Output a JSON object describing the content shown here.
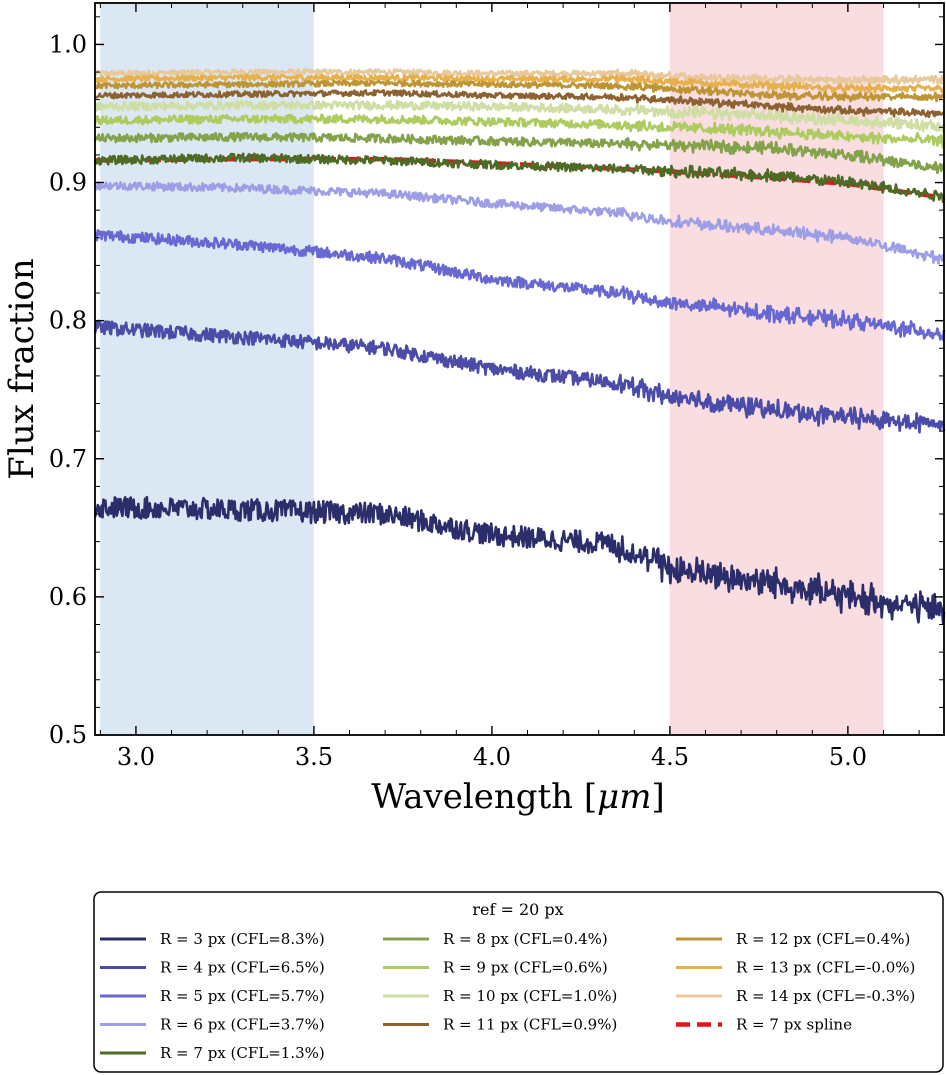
{
  "chart_data": {
    "type": "line",
    "title": "",
    "xlabel": "Wavelength [",
    "xlabel_unit": "μm",
    "xlabel_close": "]",
    "ylabel": "Flux fraction",
    "xlim": [
      2.885,
      5.27
    ],
    "ylim": [
      0.5,
      1.03
    ],
    "xticks": [
      3.0,
      3.5,
      4.0,
      4.5,
      5.0
    ],
    "xtick_labels": [
      "3.0",
      "3.5",
      "4.0",
      "4.5",
      "5.0"
    ],
    "yticks": [
      0.5,
      0.6,
      0.7,
      0.8,
      0.9,
      1.0
    ],
    "ytick_labels": [
      "0.5",
      "0.6",
      "0.7",
      "0.8",
      "0.9",
      "1.0"
    ],
    "shaded_regions": [
      {
        "x": [
          2.9,
          3.5
        ],
        "color": "#dbe8f3"
      },
      {
        "x": [
          4.5,
          5.1
        ],
        "color": "#f9dde0"
      }
    ],
    "x_grid": [
      2.9,
      3.3,
      3.7,
      4.0,
      4.35,
      4.5,
      4.8,
      5.0,
      5.27
    ],
    "series": [
      {
        "name": "R = 3 px (CFL=8.3%)",
        "color": "#2c2e6b",
        "style": "solid",
        "noise": 0.008,
        "values": [
          0.665,
          0.663,
          0.66,
          0.645,
          0.638,
          0.62,
          0.61,
          0.6,
          0.59
        ]
      },
      {
        "name": "R = 4 px (CFL=6.5%)",
        "color": "#4a4ca8",
        "style": "solid",
        "noise": 0.005,
        "values": [
          0.795,
          0.788,
          0.78,
          0.765,
          0.755,
          0.745,
          0.735,
          0.73,
          0.725
        ]
      },
      {
        "name": "R = 5 px (CFL=5.7%)",
        "color": "#6868d2",
        "style": "solid",
        "noise": 0.004,
        "values": [
          0.862,
          0.855,
          0.845,
          0.83,
          0.82,
          0.813,
          0.805,
          0.8,
          0.79
        ]
      },
      {
        "name": "R = 6 px (CFL=3.7%)",
        "color": "#9e9ee6",
        "style": "solid",
        "noise": 0.003,
        "values": [
          0.898,
          0.896,
          0.892,
          0.885,
          0.878,
          0.872,
          0.865,
          0.86,
          0.845
        ]
      },
      {
        "name": "R = 7 px (CFL=1.3%)",
        "color": "#4d6b24",
        "style": "solid",
        "noise": 0.003,
        "values": [
          0.916,
          0.918,
          0.916,
          0.913,
          0.91,
          0.908,
          0.905,
          0.9,
          0.89
        ]
      },
      {
        "name": "R = 8 px (CFL=0.4%)",
        "color": "#84a24a",
        "style": "solid",
        "noise": 0.003,
        "values": [
          0.932,
          0.933,
          0.932,
          0.93,
          0.928,
          0.927,
          0.925,
          0.92,
          0.91
        ]
      },
      {
        "name": "R = 9 px (CFL=0.6%)",
        "color": "#aecb60",
        "style": "solid",
        "noise": 0.003,
        "values": [
          0.945,
          0.946,
          0.946,
          0.944,
          0.942,
          0.94,
          0.937,
          0.933,
          0.93
        ]
      },
      {
        "name": "R = 10 px (CFL=1.0%)",
        "color": "#cfdea2",
        "style": "solid",
        "noise": 0.003,
        "values": [
          0.955,
          0.956,
          0.956,
          0.955,
          0.953,
          0.951,
          0.948,
          0.945,
          0.94
        ]
      },
      {
        "name": "R = 11 px (CFL=0.9%)",
        "color": "#8c6230",
        "style": "solid",
        "noise": 0.002,
        "values": [
          0.963,
          0.964,
          0.965,
          0.963,
          0.962,
          0.96,
          0.955,
          0.952,
          0.95
        ]
      },
      {
        "name": "R = 12 px (CFL=0.4%)",
        "color": "#bd9535",
        "style": "solid",
        "noise": 0.002,
        "values": [
          0.97,
          0.971,
          0.972,
          0.971,
          0.97,
          0.968,
          0.963,
          0.962,
          0.962
        ]
      },
      {
        "name": "R = 13 px (CFL=-0.0%)",
        "color": "#e6b04c",
        "style": "solid",
        "noise": 0.002,
        "values": [
          0.975,
          0.976,
          0.976,
          0.975,
          0.975,
          0.973,
          0.97,
          0.968,
          0.968
        ]
      },
      {
        "name": "R = 14 px (CFL=-0.3%)",
        "color": "#e8c99c",
        "style": "solid",
        "noise": 0.002,
        "values": [
          0.979,
          0.98,
          0.98,
          0.979,
          0.979,
          0.977,
          0.975,
          0.974,
          0.975
        ]
      },
      {
        "name": "R = 7 px spline",
        "color": "#e8141c",
        "style": "dashed",
        "noise": 0,
        "values": [
          0.916,
          0.917,
          0.917,
          0.914,
          0.91,
          0.908,
          0.903,
          0.899,
          0.889
        ]
      }
    ],
    "legend": {
      "title": "ref = 20 px",
      "location": "below plot",
      "columns": [
        [
          "R = 3 px (CFL=8.3%)",
          "R = 4 px (CFL=6.5%)",
          "R = 5 px (CFL=5.7%)",
          "R = 6 px (CFL=3.7%)",
          "R = 7 px (CFL=1.3%)"
        ],
        [
          "R = 8 px (CFL=0.4%)",
          "R = 9 px (CFL=0.6%)",
          "R = 10 px (CFL=1.0%)",
          "R = 11 px (CFL=0.9%)"
        ],
        [
          "R = 12 px (CFL=0.4%)",
          "R = 13 px (CFL=-0.0%)",
          "R = 14 px (CFL=-0.3%)",
          "R = 7 px spline"
        ]
      ]
    }
  }
}
